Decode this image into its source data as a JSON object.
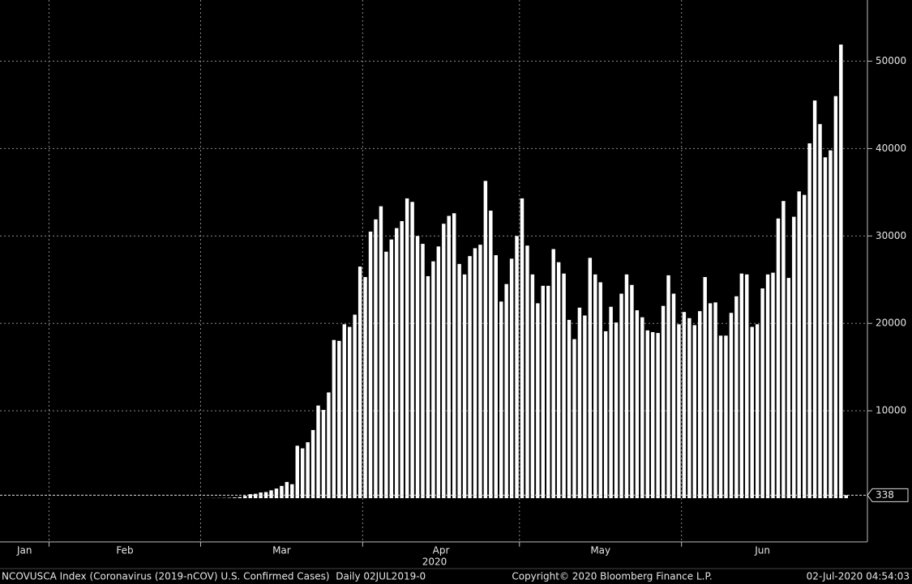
{
  "chart_data": {
    "type": "bar",
    "categories": [
      "Jan",
      null,
      null,
      null,
      null,
      null,
      null,
      null,
      null,
      null,
      "Feb",
      null,
      null,
      null,
      null,
      null,
      null,
      null,
      null,
      null,
      null,
      null,
      null,
      null,
      null,
      null,
      null,
      null,
      null,
      null,
      null,
      null,
      null,
      null,
      null,
      null,
      null,
      null,
      null,
      "Mar",
      null,
      null,
      null,
      null,
      null,
      null,
      null,
      null,
      null,
      null,
      null,
      null,
      null,
      null,
      null,
      null,
      null,
      null,
      null,
      null,
      null,
      null,
      null,
      null,
      null,
      null,
      null,
      null,
      null,
      null,
      "Apr",
      null,
      null,
      null,
      null,
      null,
      null,
      null,
      null,
      null,
      null,
      null,
      null,
      null,
      null,
      null,
      null,
      null,
      null,
      null,
      null,
      null,
      null,
      null,
      null,
      null,
      null,
      null,
      null,
      null,
      "May",
      null,
      null,
      null,
      null,
      null,
      null,
      null,
      null,
      null,
      null,
      null,
      null,
      null,
      null,
      null,
      null,
      null,
      null,
      null,
      null,
      null,
      null,
      null,
      null,
      null,
      null,
      null,
      null,
      null,
      null,
      "Jun",
      null,
      null,
      null,
      null,
      null,
      null,
      null,
      null,
      null,
      null,
      null,
      null,
      null,
      null,
      null,
      null,
      null,
      null,
      null,
      null,
      null,
      null,
      null,
      null,
      null,
      null,
      null,
      null,
      null,
      null,
      null
    ],
    "values": [
      1,
      0,
      1,
      0,
      1,
      0,
      0,
      0,
      0,
      2,
      1,
      0,
      0,
      1,
      0,
      0,
      0,
      0,
      0,
      1,
      0,
      0,
      1,
      0,
      0,
      0,
      0,
      0,
      1,
      0,
      0,
      0,
      0,
      0,
      1,
      0,
      1,
      2,
      3,
      7,
      10,
      16,
      20,
      30,
      45,
      80,
      120,
      260,
      460,
      500,
      650,
      700,
      900,
      1100,
      1400,
      1850,
      1600,
      6000,
      5700,
      6400,
      7800,
      10600,
      10100,
      12100,
      18100,
      18000,
      19900,
      19600,
      21000,
      26500,
      25300,
      30500,
      31900,
      33400,
      28200,
      29600,
      30900,
      31700,
      34300,
      33900,
      30000,
      29100,
      25400,
      27100,
      28800,
      31400,
      32300,
      32600,
      26800,
      25600,
      27700,
      28600,
      29000,
      36300,
      32900,
      27800,
      22500,
      24500,
      27400,
      30000,
      34300,
      28900,
      25600,
      22300,
      24300,
      24300,
      28500,
      27000,
      25700,
      20400,
      18200,
      21800,
      20900,
      27500,
      25600,
      24700,
      19100,
      21900,
      20100,
      23400,
      25600,
      24400,
      21500,
      20700,
      19200,
      19000,
      18900,
      22000,
      25500,
      23400,
      19900,
      21300,
      20600,
      19800,
      21400,
      25300,
      22300,
      22400,
      18600,
      18600,
      21200,
      23100,
      25700,
      25600,
      19600,
      19900,
      24000,
      25600,
      25800,
      32000,
      34000,
      25200,
      32200,
      35100,
      34700,
      40600,
      45500,
      42800,
      39000,
      39800,
      46000,
      51900,
      338
    ],
    "color": "#ffffff",
    "ylim": [
      -5000,
      57000
    ],
    "yticks": [
      10000,
      20000,
      30000,
      40000,
      50000
    ],
    "grid": true,
    "year_label": "2020",
    "footer": {
      "left": "NCOVUSCA Index (Coronavirus (2019-nCOV) U.S. Confirmed Cases)  Daily 02JUL2019-0",
      "center": "Copyright© 2020 Bloomberg Finance L.P.",
      "right": "02-Jul-2020 04:54:03"
    }
  }
}
